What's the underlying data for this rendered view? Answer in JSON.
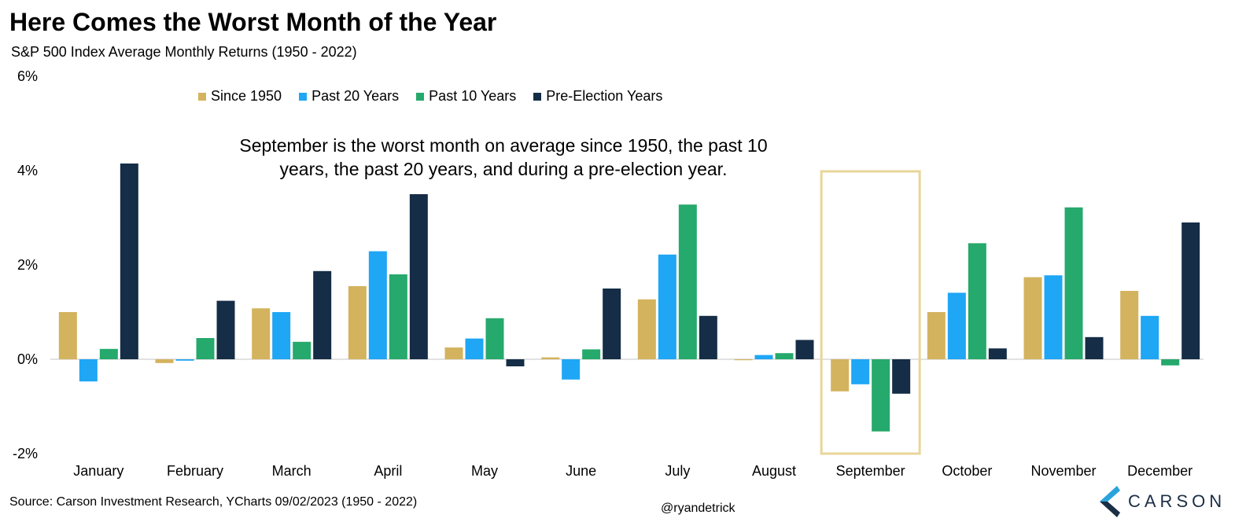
{
  "header": {
    "title": "Here Comes the Worst Month of the Year",
    "subtitle": "S&P 500 Index Average Monthly Returns (1950 - 2022)"
  },
  "annotation": {
    "line1": "September is the worst month on average since 1950, the past 10",
    "line2": "years, the past 20 years, and during a pre-election year."
  },
  "footer": {
    "source": "Source: Carson Investment Research, YCharts 09/02/2023 (1950 - 2022)",
    "handle": "@ryandetrick",
    "logo_text": "CARSON"
  },
  "colors": {
    "highlight_box": "#e8d69a",
    "axis_line": "#d9d9d9"
  },
  "chart_data": {
    "type": "bar",
    "categories": [
      "January",
      "February",
      "March",
      "April",
      "May",
      "June",
      "July",
      "August",
      "September",
      "October",
      "November",
      "December"
    ],
    "series": [
      {
        "name": "Since 1950",
        "color": "#d4b35e",
        "values": [
          1.0,
          -0.08,
          1.08,
          1.55,
          0.25,
          0.04,
          1.27,
          -0.02,
          -0.68,
          1.0,
          1.74,
          1.45
        ]
      },
      {
        "name": "Past 20 Years",
        "color": "#1fa6f5",
        "values": [
          -0.47,
          -0.03,
          1.0,
          2.29,
          0.44,
          -0.43,
          2.22,
          0.09,
          -0.53,
          1.41,
          1.78,
          0.92
        ]
      },
      {
        "name": "Past 10 Years",
        "color": "#26a96c",
        "values": [
          0.22,
          0.45,
          0.37,
          1.8,
          0.87,
          0.21,
          3.28,
          0.13,
          -1.53,
          2.46,
          3.22,
          -0.13
        ]
      },
      {
        "name": "Pre-Election Years",
        "color": "#152d46",
        "values": [
          4.15,
          1.24,
          1.87,
          3.5,
          -0.15,
          1.5,
          0.92,
          0.41,
          -0.73,
          0.23,
          0.47,
          2.9
        ]
      }
    ],
    "ylim": [
      -2,
      6
    ],
    "yticks": [
      "-2%",
      "0%",
      "2%",
      "4%",
      "6%"
    ],
    "ytick_values": [
      -2,
      0,
      2,
      4,
      6
    ],
    "highlight_category": "September",
    "legend_position": "top",
    "grid": false
  }
}
